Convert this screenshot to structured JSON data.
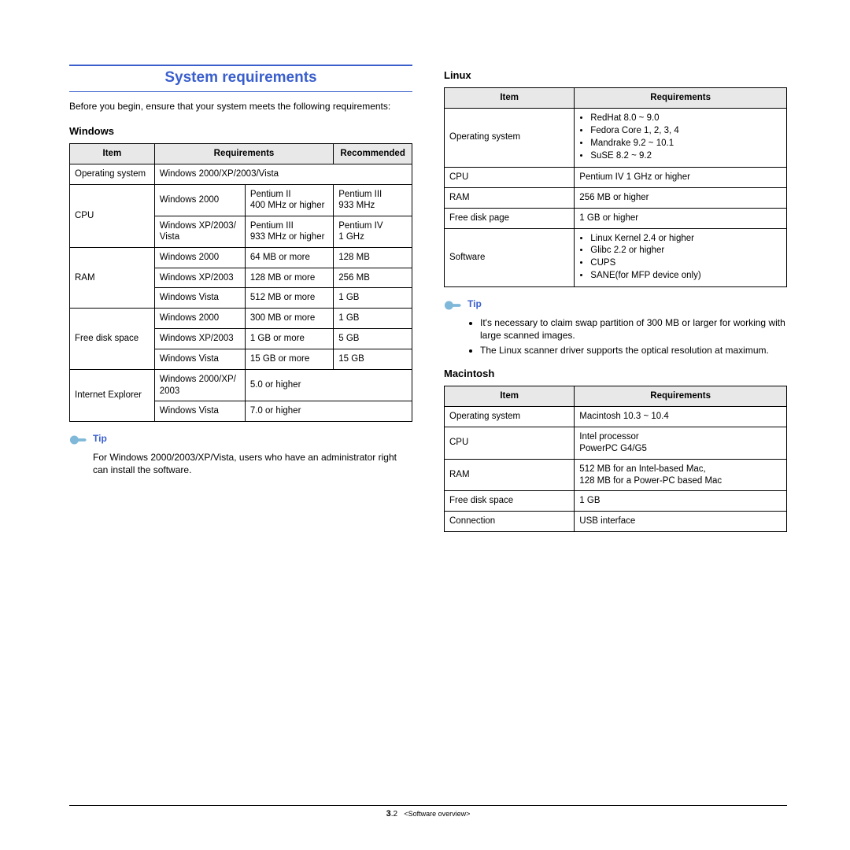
{
  "title": "System requirements",
  "intro": "Before you begin, ensure that your system meets the following requirements:",
  "colors": {
    "accent": "#3a5fcd",
    "header_bg": "#e8e8e8",
    "border": "#000000",
    "bg": "#ffffff"
  },
  "windows": {
    "heading": "Windows",
    "headers": {
      "item": "Item",
      "req": "Requirements",
      "rec": "Recommended"
    },
    "os_label": "Operating system",
    "os_value": "Windows 2000/XP/2003/Vista",
    "cpu_label": "CPU",
    "cpu_rows": [
      {
        "os": "Windows 2000",
        "req": "Pentium II\n400 MHz or higher",
        "rec": "Pentium III\n933 MHz"
      },
      {
        "os": "Windows XP/2003/\nVista",
        "req": "Pentium III\n933 MHz or higher",
        "rec": "Pentium IV\n1 GHz"
      }
    ],
    "ram_label": "RAM",
    "ram_rows": [
      {
        "os": "Windows 2000",
        "req": "64 MB or more",
        "rec": "128 MB"
      },
      {
        "os": "Windows XP/2003",
        "req": "128 MB or more",
        "rec": "256 MB"
      },
      {
        "os": "Windows Vista",
        "req": "512 MB  or more",
        "rec": "1 GB"
      }
    ],
    "disk_label": "Free disk space",
    "disk_rows": [
      {
        "os": "Windows 2000",
        "req": "300 MB or more",
        "rec": "1 GB"
      },
      {
        "os": "Windows XP/2003",
        "req": "1 GB or more",
        "rec": "5 GB"
      },
      {
        "os": "Windows Vista",
        "req": "15 GB or more",
        "rec": "15 GB"
      }
    ],
    "ie_label": "Internet Explorer",
    "ie_rows": [
      {
        "os": "Windows 2000/XP/\n2003",
        "req": "5.0 or higher"
      },
      {
        "os": "Windows Vista",
        "req": "7.0 or higher"
      }
    ],
    "tip_label": "Tip",
    "tip_text": "For Windows 2000/2003/XP/Vista, users who have an administrator right can install the software."
  },
  "linux": {
    "heading": "Linux",
    "headers": {
      "item": "Item",
      "req": "Requirements"
    },
    "rows": [
      {
        "item": "Operating system",
        "bullets": [
          "RedHat 8.0 ~ 9.0",
          "Fedora Core 1, 2, 3, 4",
          "Mandrake 9.2 ~ 10.1",
          "SuSE 8.2 ~ 9.2"
        ]
      },
      {
        "item": "CPU",
        "text": "Pentium IV 1 GHz or higher"
      },
      {
        "item": "RAM",
        "text": "256 MB or higher"
      },
      {
        "item": "Free disk page",
        "text": "1 GB or higher"
      },
      {
        "item": "Software",
        "bullets": [
          "Linux Kernel 2.4 or higher",
          "Glibc 2.2 or higher",
          "CUPS",
          "SANE(for MFP device only)"
        ]
      }
    ],
    "tip_label": "Tip",
    "tip_bullets": [
      "It's necessary to claim swap partition of 300 MB or larger for working with large scanned images.",
      "The Linux scanner driver supports the optical resolution at maximum."
    ]
  },
  "mac": {
    "heading": "Macintosh",
    "headers": {
      "item": "Item",
      "req": "Requirements"
    },
    "rows": [
      {
        "item": "Operating system",
        "text": "Macintosh 10.3 ~ 10.4"
      },
      {
        "item": "CPU",
        "text": "Intel processor\nPowerPC G4/G5"
      },
      {
        "item": "RAM",
        "text": "512 MB for an Intel-based Mac,\n128 MB for a Power-PC based Mac"
      },
      {
        "item": "Free disk space",
        "text": "1 GB"
      },
      {
        "item": "Connection",
        "text": "USB interface"
      }
    ]
  },
  "footer": {
    "page_major": "3",
    "page_minor": ".2",
    "section": "<Software overview>"
  }
}
